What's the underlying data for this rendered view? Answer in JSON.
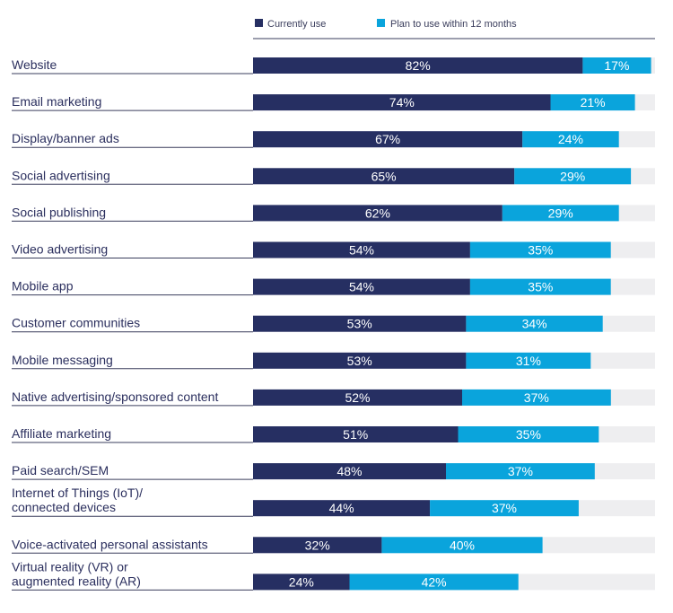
{
  "chart_data": {
    "type": "bar",
    "orientation": "horizontal",
    "stacked": true,
    "xlim": [
      0,
      100
    ],
    "legend": "top",
    "series": [
      {
        "name": "Currently use",
        "color": "#262f62",
        "values": [
          82,
          74,
          67,
          65,
          62,
          54,
          54,
          53,
          53,
          52,
          51,
          48,
          44,
          32,
          24
        ]
      },
      {
        "name": "Plan to use within 12 months",
        "color": "#0aa4dc",
        "values": [
          17,
          21,
          24,
          29,
          29,
          35,
          35,
          34,
          31,
          37,
          35,
          37,
          37,
          40,
          42
        ]
      }
    ],
    "categories": [
      [
        "Website"
      ],
      [
        "Email marketing"
      ],
      [
        "Display/banner ads"
      ],
      [
        "Social advertising"
      ],
      [
        "Social publishing"
      ],
      [
        "Video advertising"
      ],
      [
        "Mobile app"
      ],
      [
        "Customer communities"
      ],
      [
        "Mobile messaging"
      ],
      [
        "Native advertising/sponsored content"
      ],
      [
        "Affiliate marketing"
      ],
      [
        "Paid search/SEM"
      ],
      [
        "Internet of Things (IoT)/",
        "connected devices"
      ],
      [
        "Voice-activated personal assistants"
      ],
      [
        "Virtual reality (VR) or",
        "augmented reality (AR)"
      ]
    ],
    "track_color": "#eeeef0",
    "separator_color": "#3a3d5c",
    "value_suffix": "%"
  }
}
